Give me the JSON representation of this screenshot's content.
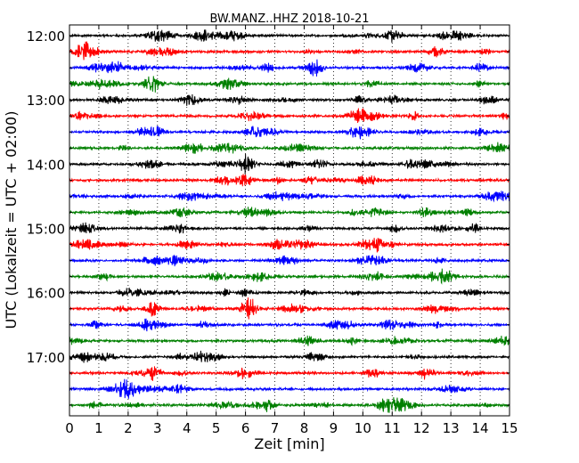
{
  "chart_data": {
    "type": "line",
    "title": "BW.MANZ..HHZ 2018-10-21",
    "xlabel": "Zeit  [min]",
    "ylabel": "UTC (Lokalzeit = UTC + 02:00)",
    "xlim": [
      0,
      15
    ],
    "x_ticks": [
      0,
      1,
      2,
      3,
      4,
      5,
      6,
      7,
      8,
      9,
      10,
      11,
      12,
      13,
      14,
      15
    ],
    "y_tick_labels": [
      "12:00",
      "13:00",
      "14:00",
      "15:00",
      "16:00",
      "17:00"
    ],
    "grid": {
      "x": "dotted vertical lines at each minute",
      "y": "none"
    },
    "trace_colors": [
      "#000000",
      "#ff0000",
      "#0000ff",
      "#008000"
    ],
    "traces": [
      {
        "start": "12:00",
        "color": "#000000"
      },
      {
        "start": "12:15",
        "color": "#ff0000"
      },
      {
        "start": "12:30",
        "color": "#0000ff"
      },
      {
        "start": "12:45",
        "color": "#008000"
      },
      {
        "start": "13:00",
        "color": "#000000"
      },
      {
        "start": "13:15",
        "color": "#ff0000"
      },
      {
        "start": "13:30",
        "color": "#0000ff"
      },
      {
        "start": "13:45",
        "color": "#008000"
      },
      {
        "start": "14:00",
        "color": "#000000"
      },
      {
        "start": "14:15",
        "color": "#ff0000"
      },
      {
        "start": "14:30",
        "color": "#0000ff"
      },
      {
        "start": "14:45",
        "color": "#008000"
      },
      {
        "start": "15:00",
        "color": "#000000"
      },
      {
        "start": "15:15",
        "color": "#ff0000"
      },
      {
        "start": "15:30",
        "color": "#0000ff"
      },
      {
        "start": "15:45",
        "color": "#008000"
      },
      {
        "start": "16:00",
        "color": "#000000"
      },
      {
        "start": "16:15",
        "color": "#ff0000"
      },
      {
        "start": "16:30",
        "color": "#0000ff"
      },
      {
        "start": "16:45",
        "color": "#008000"
      },
      {
        "start": "17:00",
        "color": "#000000"
      },
      {
        "start": "17:15",
        "color": "#ff0000"
      },
      {
        "start": "17:30",
        "color": "#0000ff"
      },
      {
        "start": "17:45",
        "color": "#008000"
      }
    ]
  }
}
